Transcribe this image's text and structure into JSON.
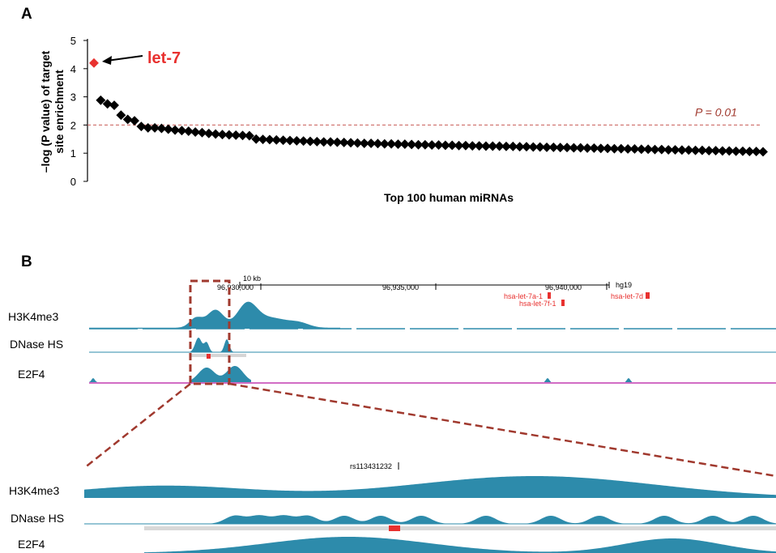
{
  "panels": {
    "a": "A",
    "b": "B"
  },
  "chart_data": {
    "type": "scatter",
    "ylabel_line1": "–log (P value) of target",
    "ylabel_line2": "site enrichment",
    "xlabel": "Top 100 human miRNAs",
    "ylim": [
      0,
      5
    ],
    "yticks": [
      "0",
      "1",
      "2",
      "3",
      "4",
      "5"
    ],
    "grid": false,
    "threshold": {
      "label": "P = 0.01",
      "value": 2
    },
    "highlight": {
      "label": "let-7",
      "x": 1,
      "y": 4.2,
      "color": "#e8312f"
    },
    "series": [
      {
        "x": [
          2,
          3,
          4,
          5,
          6,
          7,
          8,
          9,
          10,
          11,
          12,
          13,
          14,
          15,
          16,
          17,
          18,
          19,
          20,
          21,
          22,
          23,
          24,
          25,
          26,
          27,
          28,
          29,
          30,
          31,
          32,
          33,
          34,
          35,
          36,
          37,
          38,
          39,
          40,
          41,
          42,
          43,
          44,
          45,
          46,
          47,
          48,
          49,
          50,
          51,
          52,
          53,
          54,
          55,
          56,
          57,
          58,
          59,
          60,
          61,
          62,
          63,
          64,
          65,
          66,
          67,
          68,
          69,
          70,
          71,
          72,
          73,
          74,
          75,
          76,
          77,
          78,
          79,
          80,
          81,
          82,
          83,
          84,
          85,
          86,
          87,
          88,
          89,
          90,
          91,
          92,
          93,
          94,
          95,
          96,
          97,
          98,
          99,
          100
        ],
        "values": [
          2.88,
          2.75,
          2.7,
          2.35,
          2.2,
          2.15,
          1.95,
          1.9,
          1.9,
          1.88,
          1.85,
          1.82,
          1.8,
          1.78,
          1.75,
          1.73,
          1.7,
          1.68,
          1.66,
          1.65,
          1.64,
          1.63,
          1.62,
          1.5,
          1.49,
          1.48,
          1.47,
          1.46,
          1.45,
          1.44,
          1.43,
          1.42,
          1.41,
          1.4,
          1.4,
          1.39,
          1.38,
          1.37,
          1.36,
          1.35,
          1.35,
          1.34,
          1.33,
          1.33,
          1.32,
          1.32,
          1.31,
          1.3,
          1.3,
          1.29,
          1.29,
          1.28,
          1.28,
          1.27,
          1.27,
          1.26,
          1.26,
          1.25,
          1.25,
          1.25,
          1.24,
          1.24,
          1.23,
          1.23,
          1.22,
          1.22,
          1.21,
          1.21,
          1.2,
          1.2,
          1.19,
          1.19,
          1.18,
          1.18,
          1.17,
          1.17,
          1.16,
          1.16,
          1.15,
          1.15,
          1.14,
          1.14,
          1.13,
          1.13,
          1.12,
          1.12,
          1.11,
          1.11,
          1.1,
          1.1,
          1.09,
          1.09,
          1.08,
          1.08,
          1.07,
          1.07,
          1.06,
          1.06,
          1.05
        ],
        "color": "#000000"
      }
    ]
  },
  "browser": {
    "scale_label": "10 kb",
    "assembly": "hg19",
    "coords": [
      "96,930,000",
      "96,935,000",
      "96,940,000"
    ],
    "genes": [
      "hsa-let-7a-1",
      "hsa-let-7f-1",
      "hsa-let-7d"
    ],
    "tracks": [
      "H3K4me3",
      "DNase HS",
      "E2F4"
    ],
    "zoom_snp": "rs113431232",
    "zoom_tracks": [
      "H3K4me3",
      "DNase HS",
      "E2F4"
    ],
    "colors": {
      "signal": "#2d8bab",
      "highlight": "#e8312f",
      "zoom": "#a0392e",
      "e2f4_line": "#c23bb0"
    }
  }
}
